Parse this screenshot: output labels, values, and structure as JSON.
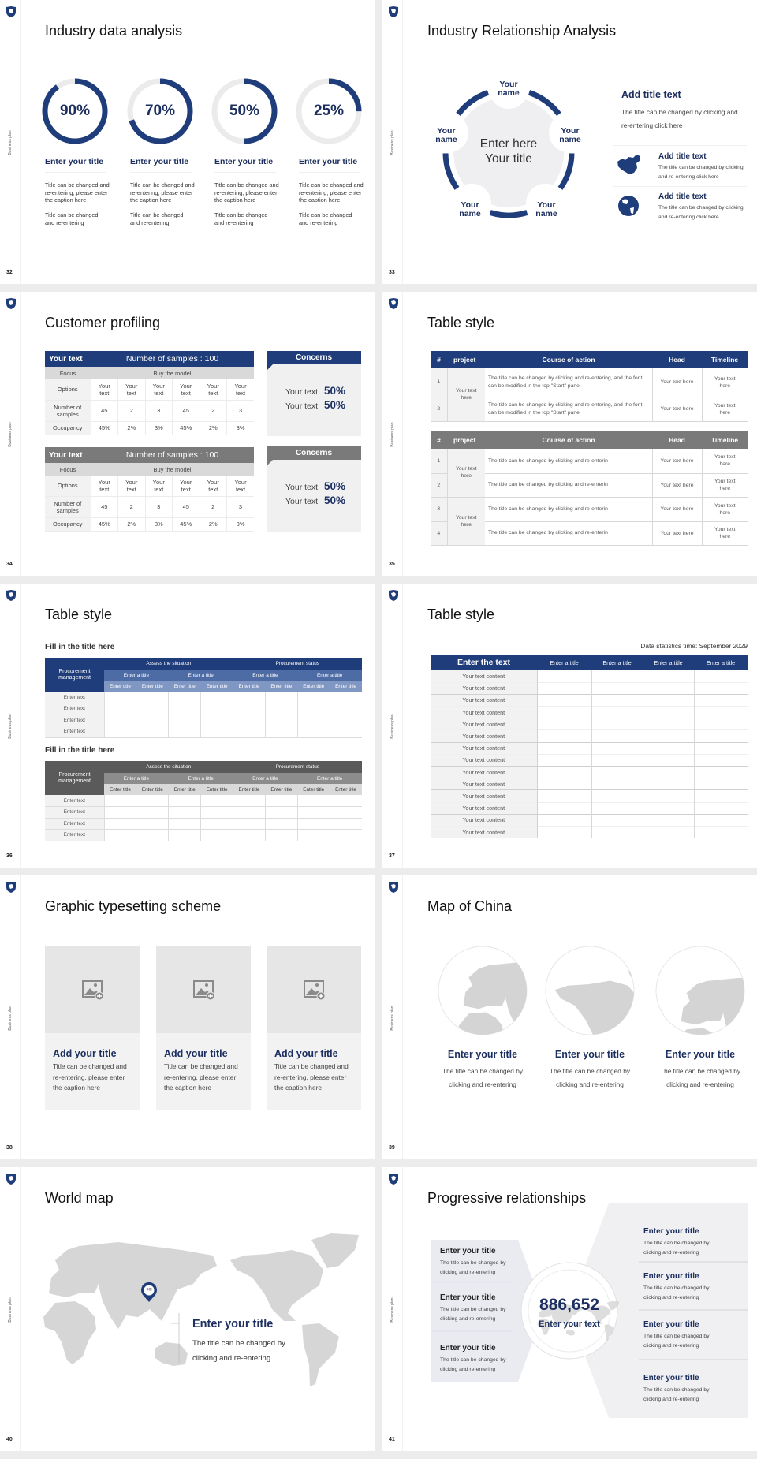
{
  "side_label": "Business plan",
  "colors": {
    "navy": "#1f3d7a",
    "gray_header": "#7a7a7a",
    "panel": "#f0f0f0"
  },
  "slide_32": {
    "page": "32",
    "title": "Industry data analysis",
    "items": [
      {
        "value": 90,
        "label": "90%",
        "title": "Enter your title",
        "caption": "Title can be changed and re-entering, please enter the caption here",
        "note": "Title can be changed and re-entering"
      },
      {
        "value": 70,
        "label": "70%",
        "title": "Enter your title",
        "caption": "Title can be changed and re-entering, please enter the caption here",
        "note": "Title can be changed and re-entering"
      },
      {
        "value": 50,
        "label": "50%",
        "title": "Enter your title",
        "caption": "Title can be changed and re-entering, please enter the caption here",
        "note": "Title can be changed and re-entering"
      },
      {
        "value": 25,
        "label": "25%",
        "title": "Enter your title",
        "caption": "Title can be changed and re-entering, please enter the caption here",
        "note": "Title can be changed and re-entering"
      }
    ]
  },
  "slide_33": {
    "page": "33",
    "title": "Industry Relationship Analysis",
    "center_text": "Enter here Your title",
    "names": [
      "Your name",
      "Your name",
      "Your name",
      "Your name",
      "Your name"
    ],
    "main_title": "Add title text",
    "main_body": "The title can be changed by clicking and re-entering click here",
    "items": [
      {
        "icon": "china-map-icon",
        "title": "Add title text",
        "body": "The title can be changed by clicking and re-entering click here"
      },
      {
        "icon": "globe-icon",
        "title": "Add title text",
        "body": "The title can be changed by clicking and re-entering click here"
      }
    ]
  },
  "slide_34": {
    "page": "34",
    "title": "Customer profiling",
    "tables": [
      {
        "theme": "#1f3d7a",
        "header_left": "Your text",
        "header_right": "Number of samples : 100",
        "focus_label": "Focus",
        "focus_value": "Buy the model",
        "options_label": "Options",
        "options": [
          "Your text",
          "Your text",
          "Your text",
          "Your text",
          "Your text",
          "Your text"
        ],
        "samples_label": "Number of samples",
        "samples": [
          "45",
          "2",
          "3",
          "45",
          "2",
          "3"
        ],
        "occupancy_label": "Occupancy",
        "occupancy": [
          "45%",
          "2%",
          "3%",
          "45%",
          "2%",
          "3%"
        ]
      },
      {
        "theme": "#7a7a7a",
        "header_left": "Your text",
        "header_right": "Number of samples : 100",
        "focus_label": "Focus",
        "focus_value": "Buy the model",
        "options_label": "Options",
        "options": [
          "Your text",
          "Your text",
          "Your text",
          "Your text",
          "Your text",
          "Your text"
        ],
        "samples_label": "Number of samples",
        "samples": [
          "45",
          "2",
          "3",
          "45",
          "2",
          "3"
        ],
        "occupancy_label": "Occupancy",
        "occupancy": [
          "45%",
          "2%",
          "3%",
          "45%",
          "2%",
          "3%"
        ]
      }
    ],
    "concerns": [
      {
        "theme": "#1f3d7a",
        "title": "Concerns",
        "lines": [
          {
            "text": "Your text",
            "value": "50%"
          },
          {
            "text": "Your text",
            "value": "50%"
          }
        ]
      },
      {
        "theme": "#7a7a7a",
        "title": "Concerns",
        "lines": [
          {
            "text": "Your text",
            "value": "50%"
          },
          {
            "text": "Your text",
            "value": "50%"
          }
        ]
      }
    ]
  },
  "slide_35": {
    "page": "35",
    "title": "Table style",
    "tables": [
      {
        "theme": "#1f3d7a",
        "headers": [
          "#",
          "project",
          "Course of action",
          "Head",
          "Timeline"
        ],
        "projects": [
          {
            "label": "Your text here",
            "span": 2
          }
        ],
        "rows": [
          {
            "num": "1",
            "action": "The title can be changed by clicking and re-entering, and the font can be modified in the top \"Start\" panel",
            "head": "Your text here",
            "timeline": "Your text here"
          },
          {
            "num": "2",
            "action": "The title can be changed by clicking and re-entering, and the font can be modified in the top \"Start\" panel",
            "head": "Your text here",
            "timeline": "Your text here"
          }
        ]
      },
      {
        "theme": "#7a7a7a",
        "headers": [
          "#",
          "project",
          "Course of action",
          "Head",
          "Timeline"
        ],
        "projects": [
          {
            "label": "Your text here",
            "span": 2
          },
          {
            "label": "Your text here",
            "span": 2
          }
        ],
        "rows": [
          {
            "num": "1",
            "action": "The title can be changed by clicking and re-enterin",
            "head": "Your text here",
            "timeline": "Your text here"
          },
          {
            "num": "2",
            "action": "The title can be changed by clicking and re-enterin",
            "head": "Your text here",
            "timeline": "Your text here"
          },
          {
            "num": "3",
            "action": "The title can be changed by clicking and re-enterin",
            "head": "Your text here",
            "timeline": "Your text here"
          },
          {
            "num": "4",
            "action": "The title can be changed by clicking and re-enterin",
            "head": "Your text here",
            "timeline": "Your text here"
          }
        ]
      }
    ]
  },
  "slide_36": {
    "page": "36",
    "title": "Table style",
    "tables": [
      {
        "heading": "Fill in the title here",
        "theme": "blue",
        "corner": "Procurement management",
        "groups": [
          "Assess the situation",
          "Procurement status"
        ],
        "subgroups": [
          "Enter a title",
          "Enter a title",
          "Enter a title",
          "Enter a title"
        ],
        "columns": [
          "Enter title",
          "Enter title",
          "Enter title",
          "Enter title",
          "Enter title",
          "Enter title",
          "Enter title",
          "Enter title"
        ],
        "rows": [
          "Enter text",
          "Enter text",
          "Enter text",
          "Enter text"
        ]
      },
      {
        "heading": "Fill in the title here",
        "theme": "gray",
        "corner": "Procurement management",
        "groups": [
          "Assess the situation",
          "Procurement status"
        ],
        "subgroups": [
          "Enter a title",
          "Enter a title",
          "Enter a title",
          "Enter a title"
        ],
        "columns": [
          "Enter title",
          "Enter title",
          "Enter title",
          "Enter title",
          "Enter title",
          "Enter title",
          "Enter title",
          "Enter title"
        ],
        "rows": [
          "Enter text",
          "Enter text",
          "Enter text",
          "Enter text"
        ]
      }
    ]
  },
  "slide_37": {
    "page": "37",
    "title": "Table style",
    "stat_time": "Data statistics time: September 2029",
    "header_main": "Enter the text",
    "columns": [
      "Enter a title",
      "Enter a title",
      "Enter a title",
      "Enter a title"
    ],
    "rows": [
      "Your text content",
      "Your text content",
      "Your text content",
      "Your text content",
      "Your text content",
      "Your text content",
      "Your text content",
      "Your text content",
      "Your text content",
      "Your text content",
      "Your text content",
      "Your text content",
      "Your text content",
      "Your text content"
    ]
  },
  "slide_38": {
    "page": "38",
    "title": "Graphic typesetting scheme",
    "cards": [
      {
        "title": "Add your title",
        "body": "Title can be changed and re-entering, please enter the caption here"
      },
      {
        "title": "Add your title",
        "body": "Title can be changed and re-entering, please enter the caption here"
      },
      {
        "title": "Add your title",
        "body": "Title can be changed and re-entering, please enter the caption here"
      }
    ]
  },
  "slide_39": {
    "page": "39",
    "title": "Map of China",
    "items": [
      {
        "title": "Enter your title",
        "body": "The title can be changed by clicking and re-entering"
      },
      {
        "title": "Enter your title",
        "body": "The title can be changed by clicking and re-entering"
      },
      {
        "title": "Enter your title",
        "body": "The title can be changed by clicking and re-entering"
      }
    ]
  },
  "slide_40": {
    "page": "40",
    "title": "World map",
    "pin_label": "中国",
    "callout_title": "Enter your title",
    "callout_body": "The title can be changed by clicking and re-entering"
  },
  "slide_41": {
    "page": "41",
    "title": "Progressive relationships",
    "center_value": "886,652",
    "center_text": "Enter your text",
    "left_items": [
      {
        "title": "Enter your title",
        "body": "The title can be changed by clicking and re-entering"
      },
      {
        "title": "Enter your title",
        "body": "The title can be changed by clicking and re-entering"
      },
      {
        "title": "Enter your title",
        "body": "The title can be changed by clicking and re-entering"
      }
    ],
    "right_items": [
      {
        "title": "Enter your title",
        "body": "The title can be changed by clicking and re-entering"
      },
      {
        "title": "Enter your title",
        "body": "The title can be changed by clicking and re-entering"
      },
      {
        "title": "Enter your title",
        "body": "The title can be changed by clicking and re-entering"
      },
      {
        "title": "Enter your title",
        "body": "The title can be changed by clicking and re-entering"
      }
    ]
  }
}
